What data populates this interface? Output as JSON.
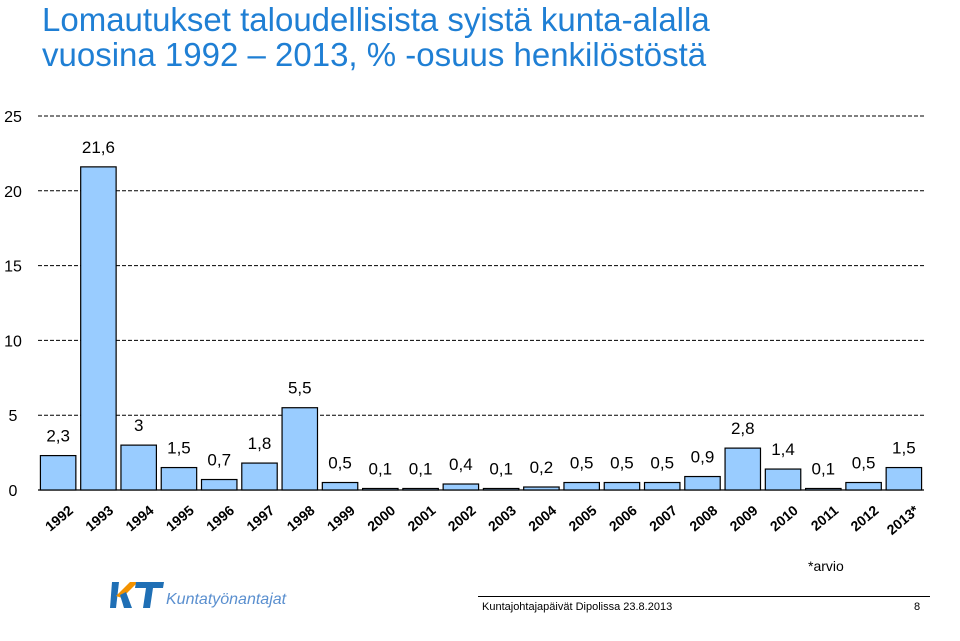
{
  "title": {
    "line1": "Lomautukset taloudellisista syistä kunta-alalla",
    "line2": "vuosina 1992 – 2013, % -osuus henkilöstöstä"
  },
  "chart_data": {
    "type": "bar",
    "categories": [
      "1992",
      "1993",
      "1994",
      "1995",
      "1996",
      "1997",
      "1998",
      "1999",
      "2000",
      "2001",
      "2002",
      "2003",
      "2004",
      "2005",
      "2006",
      "2007",
      "2008",
      "2009",
      "2010",
      "2011",
      "2012",
      "2013*"
    ],
    "values": [
      2.3,
      21.6,
      3,
      1.5,
      0.7,
      1.8,
      5.5,
      0.5,
      0.1,
      0.1,
      0.4,
      0.1,
      0.2,
      0.5,
      0.5,
      0.5,
      0.9,
      2.8,
      1.4,
      0.1,
      0.5,
      1.5
    ],
    "data_labels": [
      "2,3",
      "21,6",
      "3",
      "1,5",
      "0,7",
      "1,8",
      "5,5",
      "0,5",
      "0,1",
      "0,1",
      "0,4",
      "0,1",
      "0,2",
      "0,5",
      "0,5",
      "0,5",
      "0,9",
      "2,8",
      "1,4",
      "0,1",
      "0,5",
      "1,5"
    ],
    "yticks": [
      0,
      5,
      10,
      15,
      20,
      25
    ],
    "ylim": [
      0,
      25
    ],
    "grid": "dashed horizontal",
    "bar_color": "#99ccff",
    "xlabel": "",
    "ylabel": ""
  },
  "colors": {
    "title": "#1f7fd4",
    "bar": "#99ccff",
    "logo_orange": "#f39200",
    "logo_blue": "#1f6fb5"
  },
  "note": "*arvio",
  "logo": {
    "mark": "KT",
    "name": "Kuntatyönantajat",
    "icon": "kt-logo-icon"
  },
  "footer": {
    "text": "Kuntajohtajapäivät  Dipolissa  23.8.2013",
    "page": "8"
  }
}
